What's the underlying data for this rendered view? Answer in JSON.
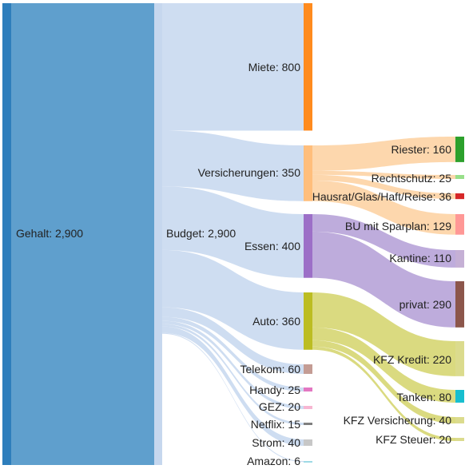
{
  "chart_data": {
    "type": "sankey",
    "colors": {
      "link_source": "#c6d7ee",
      "link_versicherungen": "#fdd09f",
      "link_essen": "#b39dd6",
      "link_auto": "#d4d36a"
    },
    "nodes": [
      {
        "id": "gehalt",
        "label": "Gehalt: 2,900",
        "value": 2900,
        "color": "#2e7ebc"
      },
      {
        "id": "budget",
        "label": "Budget: 2,900",
        "value": 2900,
        "color": "#c6d7ee"
      },
      {
        "id": "miete",
        "label": "Miete: 800",
        "value": 800,
        "color": "#ff8b1e"
      },
      {
        "id": "versicherungen",
        "label": "Versicherungen: 350",
        "value": 350,
        "color": "#ffbe7c"
      },
      {
        "id": "essen",
        "label": "Essen: 400",
        "value": 400,
        "color": "#9c6fc7"
      },
      {
        "id": "auto",
        "label": "Auto: 360",
        "value": 360,
        "color": "#bcbd22"
      },
      {
        "id": "telekom",
        "label": "Telekom: 60",
        "value": 60,
        "color": "#c49c94"
      },
      {
        "id": "handy",
        "label": "Handy: 25",
        "value": 25,
        "color": "#e377c2"
      },
      {
        "id": "gez",
        "label": "GEZ: 20",
        "value": 20,
        "color": "#f7b6d2"
      },
      {
        "id": "netflix",
        "label": "Netflix: 15",
        "value": 15,
        "color": "#7f7f7f"
      },
      {
        "id": "strom",
        "label": "Strom: 40",
        "value": 40,
        "color": "#c7c7c7"
      },
      {
        "id": "amazon",
        "label": "Amazon: 6",
        "value": 6,
        "color": "#9edae5"
      },
      {
        "id": "riester",
        "label": "Riester: 160",
        "value": 160,
        "color": "#2ca02c"
      },
      {
        "id": "rechtsschutz",
        "label": "Rechtschutz: 25",
        "value": 25,
        "color": "#98df8a"
      },
      {
        "id": "hausrat",
        "label": "Hausrat/Glas/Haft/Reise: 36",
        "value": 36,
        "color": "#d62728"
      },
      {
        "id": "bu",
        "label": "BU mit Sparplan: 129",
        "value": 129,
        "color": "#ff9896"
      },
      {
        "id": "kantine",
        "label": "Kantine: 110",
        "value": 110,
        "color": "#c5b0d5"
      },
      {
        "id": "privat",
        "label": "privat: 290",
        "value": 290,
        "color": "#8c564b"
      },
      {
        "id": "kfzkredit",
        "label": "KFZ Kredit: 220",
        "value": 220,
        "color": "#dbdb8d"
      },
      {
        "id": "tanken",
        "label": "Tanken: 80",
        "value": 80,
        "color": "#17becf"
      },
      {
        "id": "kfzvers",
        "label": "KFZ Versicherung: 40",
        "value": 40,
        "color": "#dbdb8d"
      },
      {
        "id": "kfzsteuer",
        "label": "KFZ Steuer: 20",
        "value": 20,
        "color": "#dbdb8d"
      }
    ],
    "links": [
      {
        "source": "gehalt",
        "target": "budget",
        "value": 2900
      },
      {
        "source": "budget",
        "target": "miete",
        "value": 800
      },
      {
        "source": "budget",
        "target": "versicherungen",
        "value": 350
      },
      {
        "source": "budget",
        "target": "essen",
        "value": 400
      },
      {
        "source": "budget",
        "target": "auto",
        "value": 360
      },
      {
        "source": "budget",
        "target": "telekom",
        "value": 60
      },
      {
        "source": "budget",
        "target": "handy",
        "value": 25
      },
      {
        "source": "budget",
        "target": "gez",
        "value": 20
      },
      {
        "source": "budget",
        "target": "netflix",
        "value": 15
      },
      {
        "source": "budget",
        "target": "strom",
        "value": 40
      },
      {
        "source": "budget",
        "target": "amazon",
        "value": 6
      },
      {
        "source": "versicherungen",
        "target": "riester",
        "value": 160
      },
      {
        "source": "versicherungen",
        "target": "rechtsschutz",
        "value": 25
      },
      {
        "source": "versicherungen",
        "target": "hausrat",
        "value": 36
      },
      {
        "source": "versicherungen",
        "target": "bu",
        "value": 129
      },
      {
        "source": "essen",
        "target": "kantine",
        "value": 110
      },
      {
        "source": "essen",
        "target": "privat",
        "value": 290
      },
      {
        "source": "auto",
        "target": "kfzkredit",
        "value": 220
      },
      {
        "source": "auto",
        "target": "tanken",
        "value": 80
      },
      {
        "source": "auto",
        "target": "kfzvers",
        "value": 40
      },
      {
        "source": "auto",
        "target": "kfzsteuer",
        "value": 20
      }
    ]
  }
}
